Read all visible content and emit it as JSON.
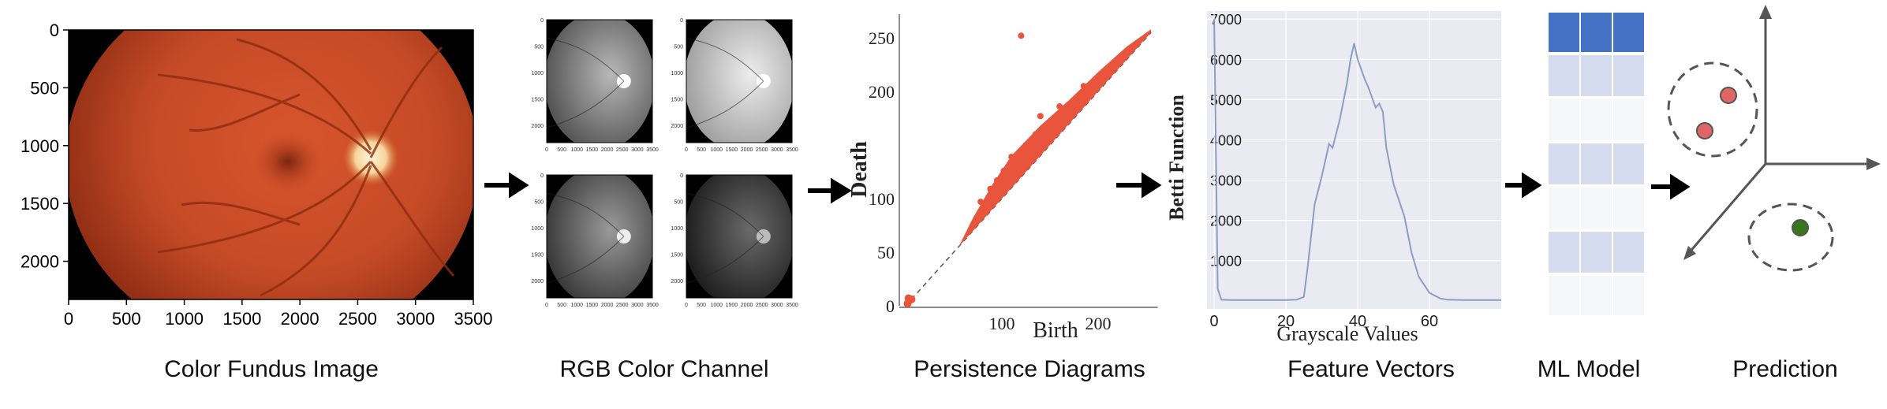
{
  "stages": [
    {
      "caption": "Color Fundus Image"
    },
    {
      "caption": "RGB Color Channel"
    },
    {
      "caption": "Persistence Diagrams"
    },
    {
      "caption": "Feature Vectors"
    },
    {
      "caption": "ML Model"
    },
    {
      "caption": "Prediction"
    }
  ],
  "fundus": {
    "x_ticks": [
      "0",
      "500",
      "1000",
      "1500",
      "2000",
      "2500",
      "3000",
      "3500"
    ],
    "y_ticks": [
      "0",
      "500",
      "1000",
      "1500",
      "2000"
    ]
  },
  "rgb": {
    "x_ticks": [
      "0",
      "500",
      "1000",
      "1500",
      "2000",
      "2500",
      "3000",
      "3500"
    ],
    "y_ticks": [
      "0",
      "500",
      "1000",
      "1500",
      "2000"
    ]
  },
  "persistence": {
    "xlabel": "Birth",
    "ylabel": "Death",
    "x_ticks": [
      "100",
      "200"
    ],
    "y_ticks": [
      "0",
      "50",
      "100",
      "200",
      "250"
    ],
    "point_color": "#e8553c"
  },
  "betti": {
    "xlabel": "Grayscale Values",
    "ylabel": "Betti Function",
    "x_ticks": [
      "0",
      "20",
      "40",
      "60"
    ],
    "y_ticks": [
      "1000",
      "2000",
      "3000",
      "4000",
      "5000",
      "6000",
      "7000"
    ],
    "line_color": "#8a9ec4"
  },
  "chart_data": {
    "type": "line",
    "xlabel": "Grayscale Values",
    "ylabel": "Betti Function",
    "xlim": [
      -2,
      80
    ],
    "ylim": [
      -200,
      7200
    ],
    "x": [
      0,
      1,
      2,
      5,
      10,
      15,
      20,
      23,
      25,
      26,
      28,
      30,
      32,
      33,
      35,
      37,
      38,
      39,
      40,
      42,
      43,
      45,
      46,
      47,
      48,
      50,
      53,
      55,
      57,
      60,
      63,
      65,
      70,
      75,
      80
    ],
    "series": [
      {
        "values": [
          7000,
          300,
          30,
          20,
          20,
          20,
          20,
          30,
          100,
          800,
          2400,
          3100,
          3900,
          3800,
          4500,
          5400,
          6000,
          6400,
          6000,
          5500,
          5300,
          4800,
          4900,
          4700,
          3800,
          2900,
          2100,
          1200,
          600,
          200,
          60,
          30,
          20,
          20,
          20
        ]
      }
    ]
  },
  "model": {
    "header_color": "#4472c4",
    "light_row_color": "#d6dcef",
    "white_row_color": "#f5f6fa"
  },
  "prediction": {
    "red_color": "#e06666",
    "green_color": "#38761d"
  },
  "colors": {
    "arrow": "#000000",
    "fundus_red": "#c44a26"
  }
}
